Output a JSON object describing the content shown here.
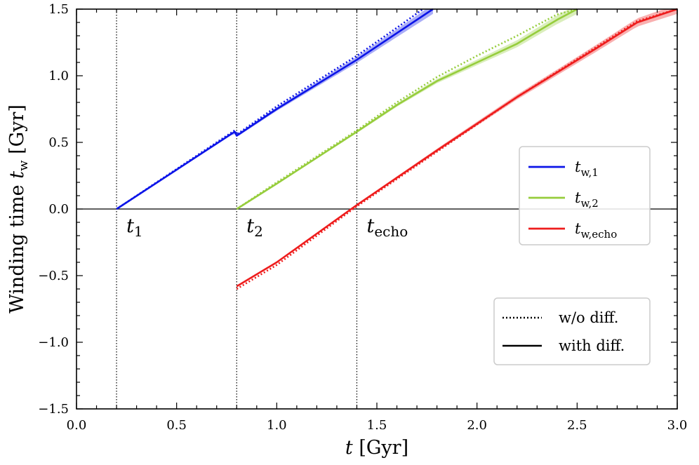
{
  "chart_data": {
    "type": "line",
    "xlabel": "t [Gyr]",
    "ylabel": "Winding time t_w [Gyr]",
    "xlim": [
      0.0,
      3.0
    ],
    "ylim": [
      -1.5,
      1.5
    ],
    "x_ticks": [
      "0.0",
      "0.5",
      "1.0",
      "1.5",
      "2.0",
      "2.5",
      "3.0"
    ],
    "y_ticks": [
      "−1.5",
      "−1.0",
      "−0.5",
      "0.0",
      "0.5",
      "1.0",
      "1.5"
    ],
    "vlines": [
      {
        "x": 0.2,
        "label_main": "t",
        "label_sub": "1"
      },
      {
        "x": 0.8,
        "label_main": "t",
        "label_sub": "2"
      },
      {
        "x": 1.4,
        "label_main": "t",
        "label_sub": "echo"
      }
    ],
    "series": [
      {
        "name": "t_w,1",
        "label_main": "t",
        "label_sub": "w,1",
        "color": "#0b14e8",
        "with_diff": {
          "x": [
            0.2,
            0.79,
            0.8,
            0.82,
            1.0,
            1.4,
            1.6,
            1.78
          ],
          "y": [
            0.0,
            0.58,
            0.55,
            0.57,
            0.75,
            1.12,
            1.32,
            1.5
          ]
        },
        "without_diff": {
          "x": [
            0.2,
            0.79,
            0.8,
            0.82,
            1.0,
            1.4,
            1.6,
            1.73
          ],
          "y": [
            0.0,
            0.59,
            0.56,
            0.58,
            0.77,
            1.15,
            1.36,
            1.5
          ]
        }
      },
      {
        "name": "t_w,2",
        "label_main": "t",
        "label_sub": "w,2",
        "color": "#96cd3c",
        "with_diff": {
          "x": [
            0.8,
            1.0,
            1.4,
            1.6,
            1.8,
            2.0,
            2.2,
            2.4,
            2.5
          ],
          "y": [
            0.0,
            0.19,
            0.58,
            0.78,
            0.96,
            1.1,
            1.24,
            1.42,
            1.5
          ]
        },
        "without_diff": {
          "x": [
            0.8,
            1.0,
            1.4,
            1.6,
            1.8,
            2.0,
            2.2,
            2.4,
            2.5
          ],
          "y": [
            0.0,
            0.2,
            0.59,
            0.8,
            0.99,
            1.15,
            1.3,
            1.46,
            1.5
          ]
        }
      },
      {
        "name": "t_w,echo",
        "label_main": "t",
        "label_sub": "w,echo",
        "color": "#ee1c1c",
        "with_diff": {
          "x": [
            0.8,
            1.0,
            1.4,
            1.8,
            2.2,
            2.6,
            2.8,
            3.0
          ],
          "y": [
            -0.58,
            -0.4,
            0.03,
            0.44,
            0.84,
            1.21,
            1.4,
            1.5
          ]
        },
        "without_diff": {
          "x": [
            0.8,
            1.0,
            1.4,
            1.8,
            2.2,
            2.6,
            2.8,
            3.0
          ],
          "y": [
            -0.6,
            -0.42,
            0.02,
            0.43,
            0.84,
            1.22,
            1.41,
            1.52
          ]
        }
      }
    ],
    "legend_styles": [
      {
        "label": "w/o diff.",
        "style": "dotted"
      },
      {
        "label": "with diff.",
        "style": "solid"
      }
    ]
  }
}
